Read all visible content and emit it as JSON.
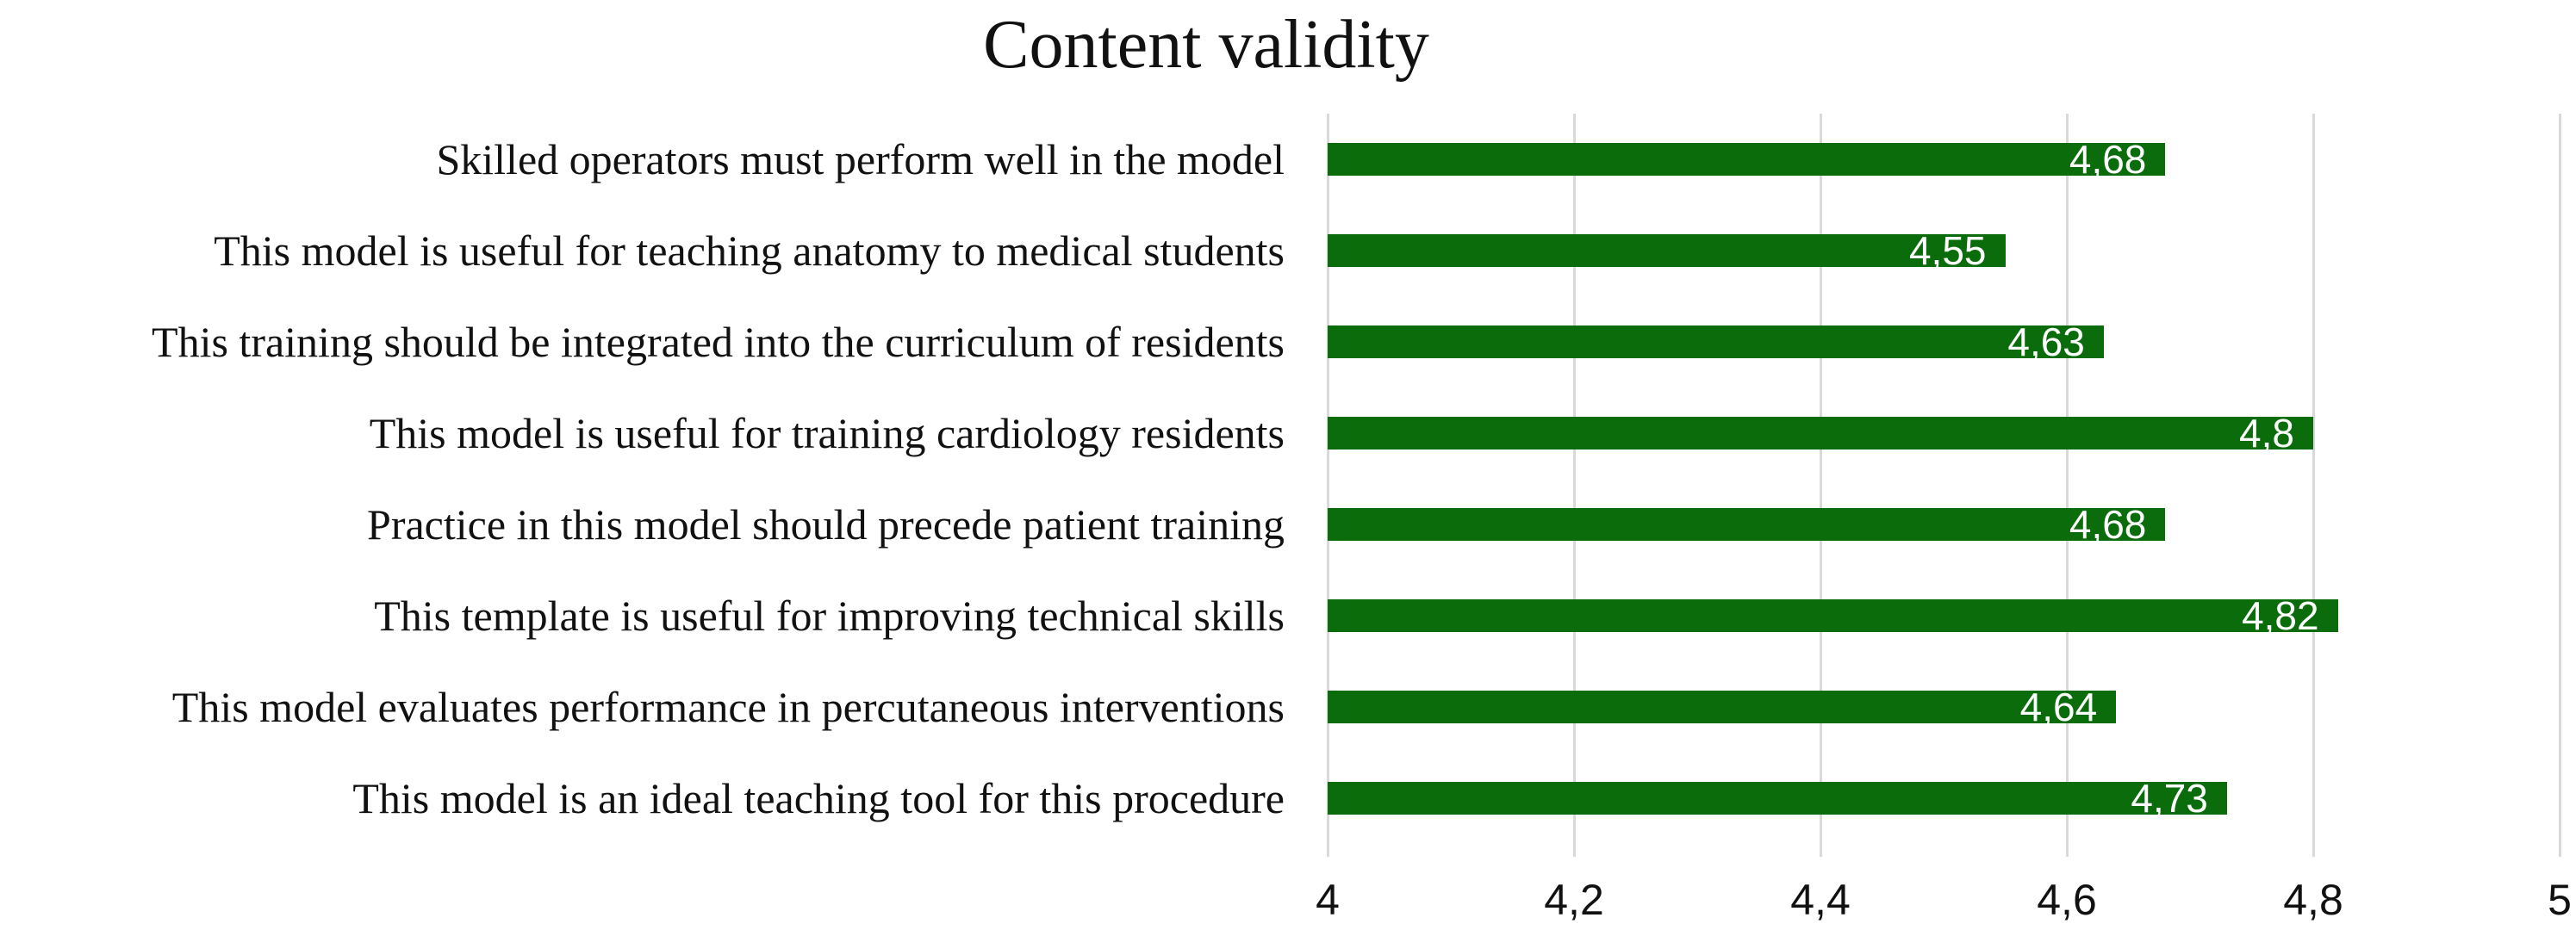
{
  "chart_data": {
    "type": "bar",
    "orientation": "horizontal",
    "title": "Content validity",
    "categories": [
      "Skilled operators must perform well in the model",
      "This model is useful for teaching anatomy to medical students",
      "This training should be integrated into the curriculum of residents",
      "This model is useful for training cardiology residents",
      "Practice in this model should precede patient training",
      "This template is useful for improving technical skills",
      "This model evaluates performance in percutaneous interventions",
      "This model is an ideal teaching tool for this procedure"
    ],
    "values": [
      4.68,
      4.55,
      4.63,
      4.8,
      4.68,
      4.82,
      4.64,
      4.73
    ],
    "value_labels": [
      "4,68",
      "4,55",
      "4,63",
      "4,8",
      "4,68",
      "4,82",
      "4,64",
      "4,73"
    ],
    "xlabel": "",
    "ylabel": "",
    "xlim": [
      4,
      5
    ],
    "x_ticks": [
      {
        "value": 4.0,
        "label": "4"
      },
      {
        "value": 4.2,
        "label": "4,2"
      },
      {
        "value": 4.4,
        "label": "4,4"
      },
      {
        "value": 4.6,
        "label": "4,6"
      },
      {
        "value": 4.8,
        "label": "4,8"
      },
      {
        "value": 5.0,
        "label": "5"
      }
    ],
    "grid": "vertical-only",
    "legend": "none",
    "colors": {
      "bar": "#0a6c0a",
      "gridline": "#d9d9d9",
      "value_label": "#ffffff",
      "text": "#111111",
      "background": "#ffffff"
    }
  }
}
